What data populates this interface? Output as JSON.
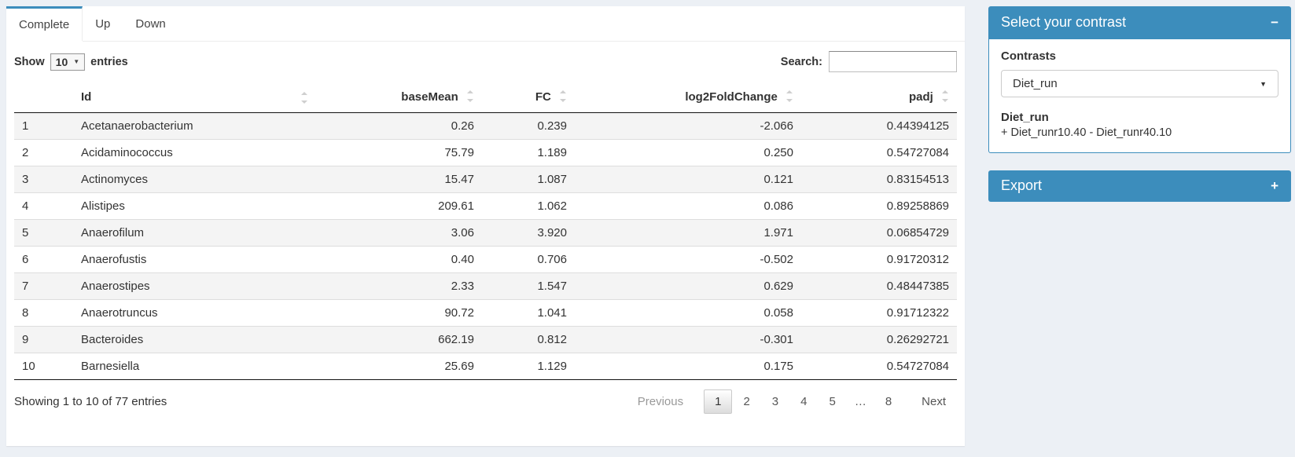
{
  "tabs": [
    {
      "label": "Complete",
      "active": true
    },
    {
      "label": "Up",
      "active": false
    },
    {
      "label": "Down",
      "active": false
    }
  ],
  "table_controls": {
    "show_label": "Show",
    "page_length": "10",
    "entries_label": "entries",
    "search_label": "Search:",
    "search_value": ""
  },
  "table": {
    "columns": [
      "Id",
      "baseMean",
      "FC",
      "log2FoldChange",
      "padj"
    ],
    "rows": [
      {
        "n": "1",
        "id": "Acetanaerobacterium",
        "baseMean": "0.26",
        "fc": "0.239",
        "log2fc": "-2.066",
        "padj": "0.44394125"
      },
      {
        "n": "2",
        "id": "Acidaminococcus",
        "baseMean": "75.79",
        "fc": "1.189",
        "log2fc": "0.250",
        "padj": "0.54727084"
      },
      {
        "n": "3",
        "id": "Actinomyces",
        "baseMean": "15.47",
        "fc": "1.087",
        "log2fc": "0.121",
        "padj": "0.83154513"
      },
      {
        "n": "4",
        "id": "Alistipes",
        "baseMean": "209.61",
        "fc": "1.062",
        "log2fc": "0.086",
        "padj": "0.89258869"
      },
      {
        "n": "5",
        "id": "Anaerofilum",
        "baseMean": "3.06",
        "fc": "3.920",
        "log2fc": "1.971",
        "padj": "0.06854729"
      },
      {
        "n": "6",
        "id": "Anaerofustis",
        "baseMean": "0.40",
        "fc": "0.706",
        "log2fc": "-0.502",
        "padj": "0.91720312"
      },
      {
        "n": "7",
        "id": "Anaerostipes",
        "baseMean": "2.33",
        "fc": "1.547",
        "log2fc": "0.629",
        "padj": "0.48447385"
      },
      {
        "n": "8",
        "id": "Anaerotruncus",
        "baseMean": "90.72",
        "fc": "1.041",
        "log2fc": "0.058",
        "padj": "0.91712322"
      },
      {
        "n": "9",
        "id": "Bacteroides",
        "baseMean": "662.19",
        "fc": "0.812",
        "log2fc": "-0.301",
        "padj": "0.26292721"
      },
      {
        "n": "10",
        "id": "Barnesiella",
        "baseMean": "25.69",
        "fc": "1.129",
        "log2fc": "0.175",
        "padj": "0.54727084"
      }
    ],
    "info": "Showing 1 to 10 of 77 entries",
    "pagination": {
      "previous": "Previous",
      "pages": [
        "1",
        "2",
        "3",
        "4",
        "5",
        "…",
        "8"
      ],
      "active": "1",
      "next": "Next"
    }
  },
  "contrast_panel": {
    "title": "Select your contrast",
    "collapse_icon": "−",
    "contrasts_label": "Contrasts",
    "selected_contrast": "Diet_run",
    "contrast_name": "Diet_run",
    "contrast_formula": "+ Diet_runr10.40 - Diet_runr40.10"
  },
  "export_panel": {
    "title": "Export",
    "expand_icon": "+"
  },
  "colors": {
    "accent": "#3c8dbc",
    "page_bg": "#ecf0f5",
    "stripe": "#f4f4f4"
  }
}
